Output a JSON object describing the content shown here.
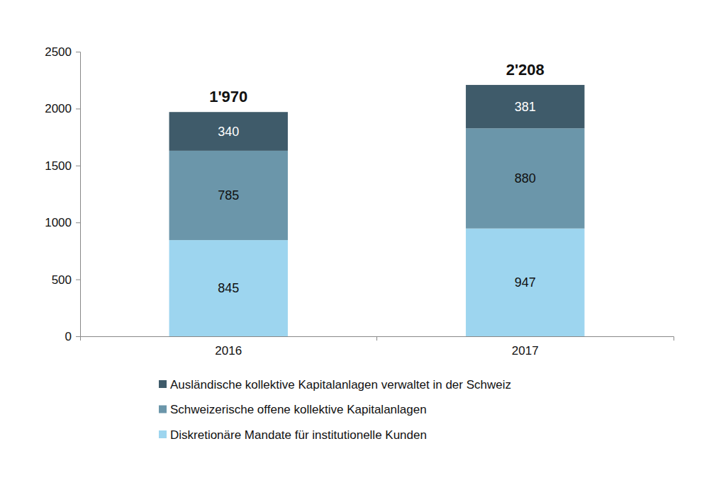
{
  "chart_data": {
    "type": "bar",
    "stacked": true,
    "data_labels": true,
    "grid": false,
    "legend": "bottom",
    "categories": [
      "2016",
      "2017"
    ],
    "series": [
      {
        "name": "Diskretionäre Mandate für institutionelle Kunden",
        "color": "#9dd5ef",
        "values": [
          845,
          947
        ]
      },
      {
        "name": "Schweizerische offene kollektive Kapitalanlagen",
        "color": "#6b96aa",
        "values": [
          785,
          880
        ]
      },
      {
        "name": "Ausländische kollektive Kapitalanlagen verwaltet in der Schweiz",
        "color": "#3f5b6a",
        "values": [
          340,
          381
        ]
      }
    ],
    "totals": [
      1970,
      2208
    ],
    "total_labels": [
      "1'970",
      "2'208"
    ],
    "ylim": [
      0,
      2500
    ],
    "yticks": [
      0,
      500,
      1000,
      1500,
      2000,
      2500
    ]
  }
}
